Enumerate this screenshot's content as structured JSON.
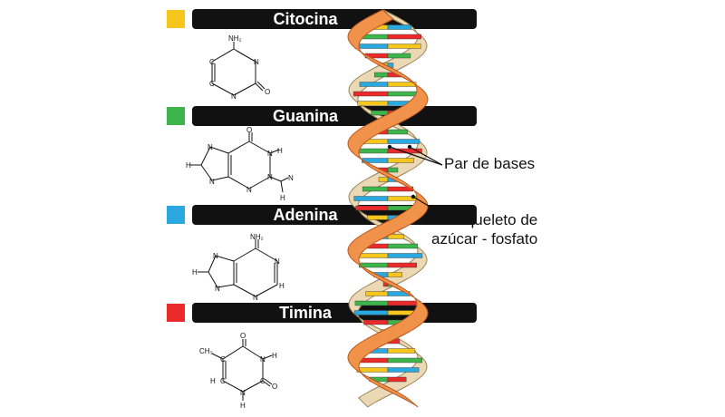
{
  "bases": [
    {
      "name": "Citocina",
      "color": "#F6C61C"
    },
    {
      "name": "Guanina",
      "color": "#3DB54A"
    },
    {
      "name": "Adenina",
      "color": "#29A9E0"
    },
    {
      "name": "Timina",
      "color": "#EB2B2B"
    }
  ],
  "atoms": {
    "N": "N",
    "O": "O",
    "C": "C",
    "H": "H",
    "NH2": "NH₂",
    "CH3": "CH₃"
  },
  "labels": {
    "base_pair": "Par de bases",
    "backbone_line1": "Esqueleto de",
    "backbone_line2": "azúcar - fosfato"
  },
  "colors": {
    "backbone": "#F0924A",
    "backbone_dark": "#B8571E",
    "back_strand": "#EAD9B4",
    "pill_bg": "#111111"
  }
}
